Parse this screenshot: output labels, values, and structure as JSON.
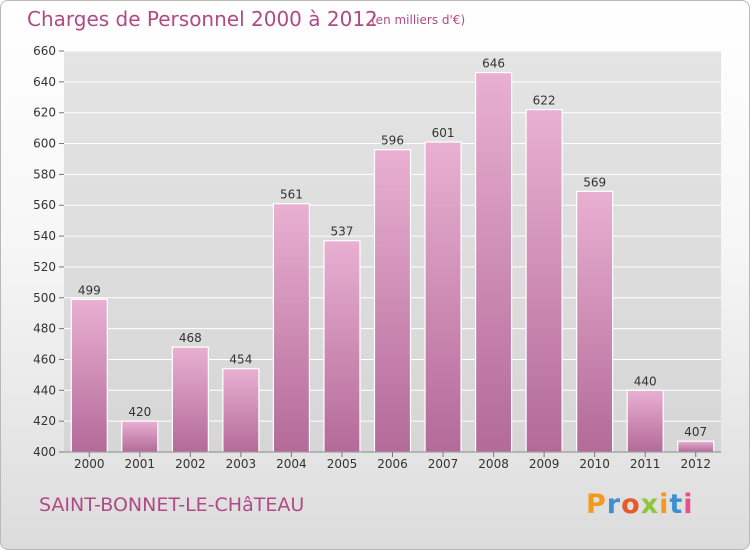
{
  "header": {
    "title": "Charges de Personnel 2000 à 2012",
    "subtitle": "(en milliers d'€)"
  },
  "footer": {
    "place": "SAINT-BONNET-LE-CHâTEAU",
    "logo": {
      "text": "Proxiti",
      "letter_colors": [
        "#f39a1e",
        "#3f8fd0",
        "#e85a2a",
        "#8cc63f",
        "#f39a1e",
        "#3f8fd0",
        "#e84f8c"
      ]
    }
  },
  "colors": {
    "bar_top": "#e9b0d2",
    "bar_bottom": "#b36a98",
    "text_accent": "#b04a86",
    "grid": "#ffffff",
    "plot_bg": "#dedede"
  },
  "chart_data": {
    "type": "bar",
    "title": "Charges de Personnel 2000 à 2012",
    "subtitle": "(en milliers d'€)",
    "categories": [
      "2000",
      "2001",
      "2002",
      "2003",
      "2004",
      "2005",
      "2006",
      "2007",
      "2008",
      "2009",
      "2010",
      "2011",
      "2012"
    ],
    "values": [
      499,
      420,
      468,
      454,
      561,
      537,
      596,
      601,
      646,
      622,
      569,
      440,
      407
    ],
    "ylim": [
      400,
      660
    ],
    "yticks": [
      400,
      420,
      440,
      460,
      480,
      500,
      520,
      540,
      560,
      580,
      600,
      620,
      640,
      660
    ],
    "grid": true,
    "xlabel": "",
    "ylabel": ""
  }
}
